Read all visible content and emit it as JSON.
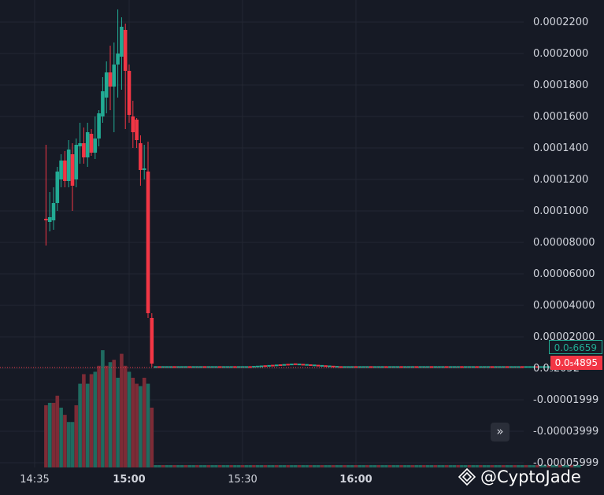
{
  "chart_data": {
    "type": "candlestick",
    "price_axis_labels": [
      "0.0002200",
      "0.0002000",
      "0.0001800",
      "0.0001600",
      "0.0001400",
      "0.0001200",
      "0.0001000",
      "0.00008000",
      "0.00006000",
      "0.00004000",
      "0.00002000",
      "0.0₅2052",
      "-0.00001999",
      "-0.00003999",
      "-0.00005999"
    ],
    "time_axis_labels": [
      {
        "label": "14:35",
        "bold": false
      },
      {
        "label": "15:00",
        "bold": true
      },
      {
        "label": "15:30",
        "bold": false
      },
      {
        "label": "16:00",
        "bold": true
      }
    ],
    "time_range": [
      "14:35",
      "16:59"
    ],
    "ylim": [
      -6e-05,
      0.00023
    ],
    "grid": true,
    "candles": [
      {
        "t": "14:38",
        "o": 9.5e-05,
        "h": 0.000142,
        "l": 7.8e-05,
        "c": 9.4e-05
      },
      {
        "t": "14:39",
        "o": 9.3e-05,
        "h": 0.000112,
        "l": 8.7e-05,
        "c": 9.6e-05
      },
      {
        "t": "14:40",
        "o": 9.4e-05,
        "h": 0.000115,
        "l": 8.8e-05,
        "c": 0.000105
      },
      {
        "t": "14:41",
        "o": 0.000105,
        "h": 0.000128,
        "l": 0.0001,
        "c": 0.000125
      },
      {
        "t": "14:42",
        "o": 0.00012,
        "h": 0.000136,
        "l": 0.000115,
        "c": 0.000132
      },
      {
        "t": "14:43",
        "o": 0.000132,
        "h": 0.000138,
        "l": 0.000115,
        "c": 0.000119
      },
      {
        "t": "14:44",
        "o": 0.000119,
        "h": 0.000145,
        "l": 0.000115,
        "c": 0.000139
      },
      {
        "t": "14:45",
        "o": 0.000136,
        "h": 0.000143,
        "l": 0.0001,
        "c": 0.000116
      },
      {
        "t": "14:46",
        "o": 0.00012,
        "h": 0.000146,
        "l": 0.000115,
        "c": 0.000142
      },
      {
        "t": "14:47",
        "o": 0.000141,
        "h": 0.000156,
        "l": 0.00013,
        "c": 0.000143
      },
      {
        "t": "14:48",
        "o": 0.000143,
        "h": 0.000153,
        "l": 0.00013,
        "c": 0.000134
      },
      {
        "t": "14:49",
        "o": 0.000134,
        "h": 0.000156,
        "l": 0.000128,
        "c": 0.00015
      },
      {
        "t": "14:50",
        "o": 0.000149,
        "h": 0.000152,
        "l": 0.000135,
        "c": 0.000137
      },
      {
        "t": "14:51",
        "o": 0.000137,
        "h": 0.00016,
        "l": 0.000133,
        "c": 0.000146
      },
      {
        "t": "14:52",
        "o": 0.000146,
        "h": 0.000164,
        "l": 0.000141,
        "c": 0.000162
      },
      {
        "t": "14:53",
        "o": 0.00016,
        "h": 0.000185,
        "l": 0.000156,
        "c": 0.000176
      },
      {
        "t": "14:54",
        "o": 0.000172,
        "h": 0.000195,
        "l": 0.000162,
        "c": 0.000188
      },
      {
        "t": "14:55",
        "o": 0.000188,
        "h": 0.000205,
        "l": 0.000164,
        "c": 0.000179
      },
      {
        "t": "14:56",
        "o": 0.000179,
        "h": 0.000207,
        "l": 0.00015,
        "c": 0.000193
      },
      {
        "t": "14:57",
        "o": 0.000193,
        "h": 0.000228,
        "l": 0.000172,
        "c": 0.0002
      },
      {
        "t": "14:58",
        "o": 0.000198,
        "h": 0.000223,
        "l": 0.000177,
        "c": 0.000217
      },
      {
        "t": "14:59",
        "o": 0.000215,
        "h": 0.000219,
        "l": 0.000152,
        "c": 0.000189
      },
      {
        "t": "15:00",
        "o": 0.000189,
        "h": 0.000193,
        "l": 0.000156,
        "c": 0.000161
      },
      {
        "t": "15:01",
        "o": 0.00016,
        "h": 0.00017,
        "l": 0.00014,
        "c": 0.00015
      },
      {
        "t": "15:02",
        "o": 0.000158,
        "h": 0.000159,
        "l": 0.00014,
        "c": 0.000145
      },
      {
        "t": "15:03",
        "o": 0.000143,
        "h": 0.000148,
        "l": 0.000116,
        "c": 0.000126
      },
      {
        "t": "15:04",
        "o": 0.000126,
        "h": 0.000142,
        "l": 0.00012,
        "c": 0.000127
      },
      {
        "t": "15:05",
        "o": 0.000125,
        "h": 0.000144,
        "l": 3.2e-05,
        "c": 3.5e-05
      },
      {
        "t": "15:06",
        "o": 3.2e-05,
        "h": 3.5e-05,
        "l": 1e-06,
        "c": 3e-06
      }
    ],
    "tail": {
      "from": "15:07",
      "to": "16:59",
      "approx_level": 8e-07,
      "bump": {
        "at": "15:44",
        "peak": 2.6e-06
      }
    },
    "volume": {
      "unit": "relative",
      "bars": [
        {
          "v": 0.52,
          "dir": "down"
        },
        {
          "v": 0.54,
          "dir": "up"
        },
        {
          "v": 0.54,
          "dir": "down"
        },
        {
          "v": 0.6,
          "dir": "down"
        },
        {
          "v": 0.5,
          "dir": "up"
        },
        {
          "v": 0.44,
          "dir": "down"
        },
        {
          "v": 0.38,
          "dir": "up"
        },
        {
          "v": 0.38,
          "dir": "up"
        },
        {
          "v": 0.52,
          "dir": "down"
        },
        {
          "v": 0.7,
          "dir": "up"
        },
        {
          "v": 0.78,
          "dir": "down"
        },
        {
          "v": 0.7,
          "dir": "up"
        },
        {
          "v": 0.78,
          "dir": "down"
        },
        {
          "v": 0.8,
          "dir": "up"
        },
        {
          "v": 0.85,
          "dir": "down"
        },
        {
          "v": 0.98,
          "dir": "up"
        },
        {
          "v": 0.85,
          "dir": "down"
        },
        {
          "v": 0.88,
          "dir": "up"
        },
        {
          "v": 0.9,
          "dir": "down"
        },
        {
          "v": 0.75,
          "dir": "up"
        },
        {
          "v": 0.95,
          "dir": "down"
        },
        {
          "v": 0.85,
          "dir": "down"
        },
        {
          "v": 0.8,
          "dir": "up"
        },
        {
          "v": 0.75,
          "dir": "down"
        },
        {
          "v": 0.7,
          "dir": "down"
        },
        {
          "v": 0.68,
          "dir": "up"
        },
        {
          "v": 0.75,
          "dir": "down"
        },
        {
          "v": 0.7,
          "dir": "up"
        },
        {
          "v": 0.5,
          "dir": "down"
        }
      ],
      "tail_level": 0.02
    },
    "last_price_label": "0.0₅6659",
    "current_price_label": "0.0₅4895",
    "current_price": 4.895e-07
  },
  "colors": {
    "background": "#161a25",
    "grid": "#232732",
    "up": "#22ab94",
    "down": "#f23645",
    "axis_text": "#d1d4dc",
    "volume_up": "#1f6b60",
    "volume_down": "#7d2b36"
  },
  "ui": {
    "scroll_button_icon": "double-chevron-right-icon",
    "scroll_button_glyph": "»",
    "watermark_text": "@CyptoJade",
    "watermark_logo_icon": "binance-diamond-logo-icon"
  }
}
